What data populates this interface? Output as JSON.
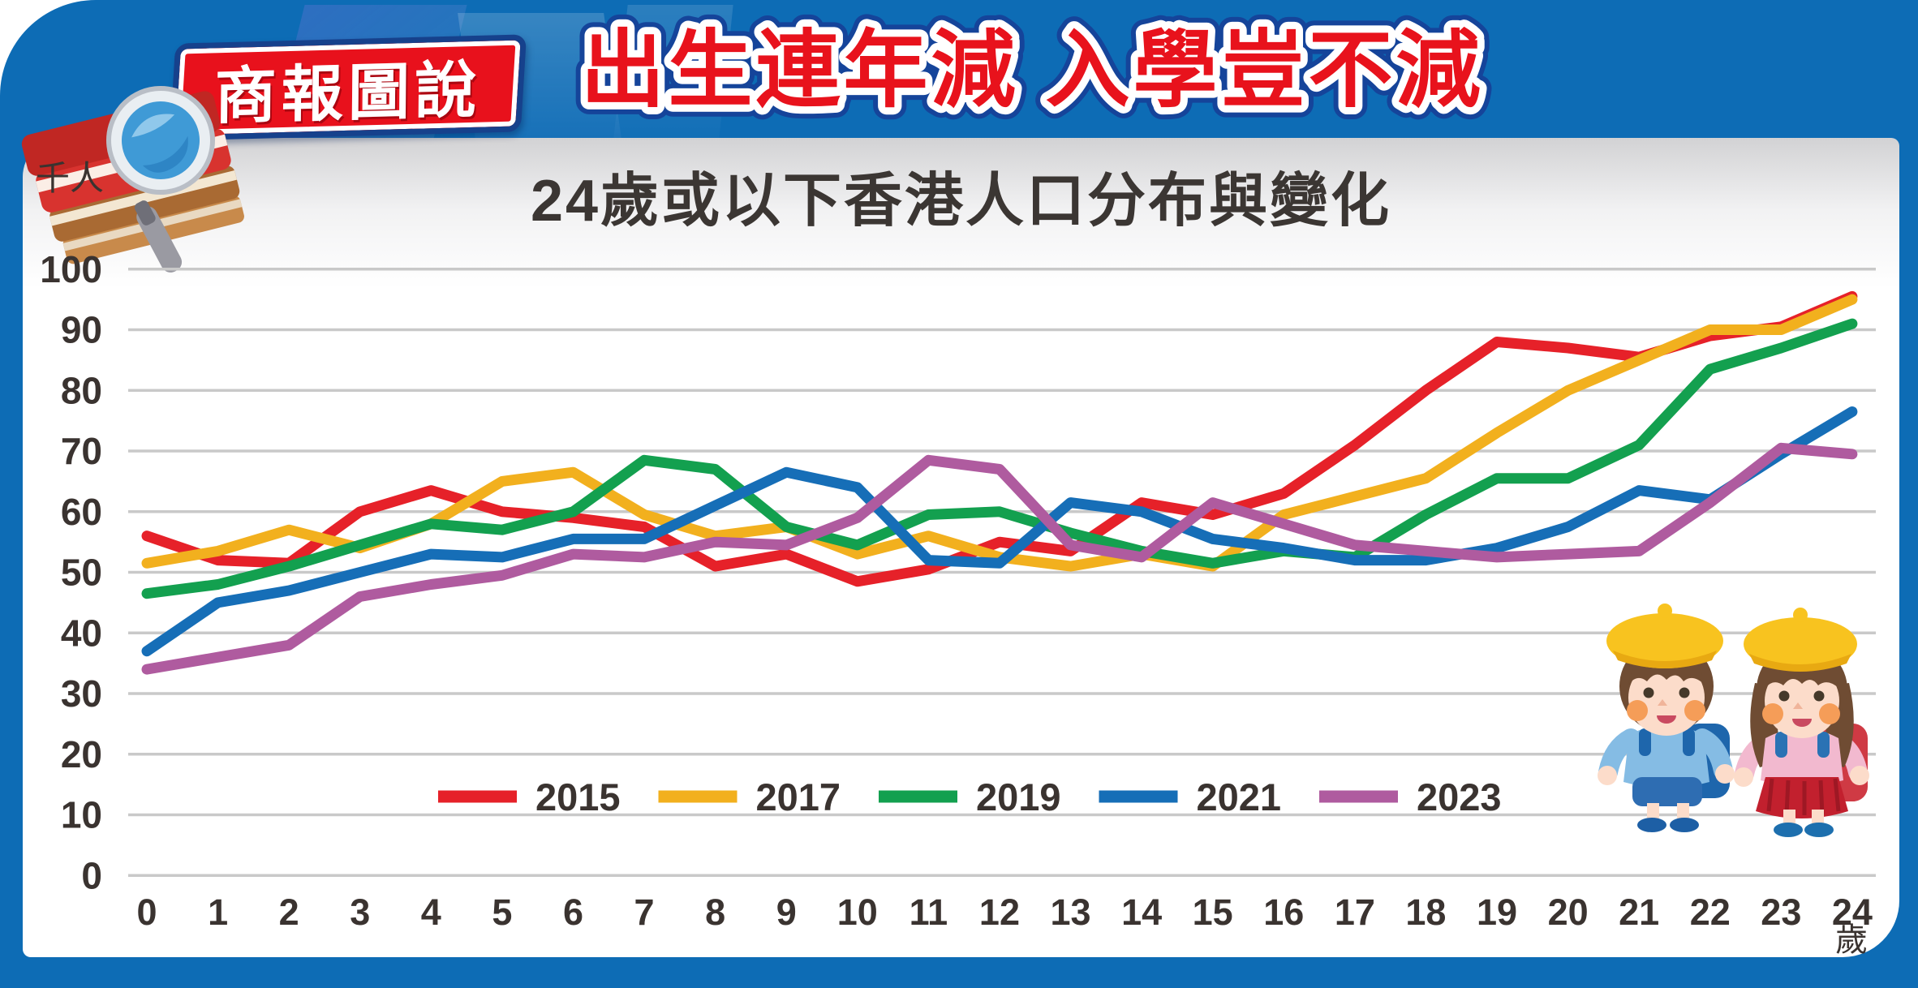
{
  "header": {
    "badge": "商報圖說",
    "title": "出生連年減 入學豈不減"
  },
  "chart_data": {
    "type": "line",
    "title": "24歲或以下香港人口分布與變化",
    "y_unit": "千人",
    "x_unit": "歲",
    "xlabel": "",
    "ylabel": "千人",
    "ylim": [
      0,
      100
    ],
    "y_ticks": [
      0,
      10,
      20,
      30,
      40,
      50,
      60,
      70,
      80,
      90,
      100
    ],
    "x": [
      0,
      1,
      2,
      3,
      4,
      5,
      6,
      7,
      8,
      9,
      10,
      11,
      12,
      13,
      14,
      15,
      16,
      17,
      18,
      19,
      20,
      21,
      22,
      23,
      24
    ],
    "grid": true,
    "legend_position": "bottom-center",
    "series": [
      {
        "name": "2015",
        "color": "#e62129",
        "values": [
          56,
          52,
          51.5,
          60,
          63.5,
          60,
          59,
          57.5,
          51,
          53,
          48.5,
          50.5,
          55,
          53.5,
          61.5,
          59.5,
          63,
          71,
          80,
          88,
          87,
          85.5,
          89,
          90.5,
          95.5
        ]
      },
      {
        "name": "2017",
        "color": "#f2b01e",
        "values": [
          51.5,
          53.5,
          57,
          54,
          58,
          65,
          66.5,
          59.5,
          56,
          57.5,
          53,
          56,
          52.5,
          51,
          53,
          51,
          59.5,
          62.5,
          65.5,
          73,
          80,
          85,
          90,
          90,
          95
        ]
      },
      {
        "name": "2019",
        "color": "#13a04f",
        "values": [
          46.5,
          48,
          51,
          54.5,
          58,
          57,
          60,
          68.5,
          67,
          57.5,
          54.5,
          59.5,
          60,
          56.5,
          53.5,
          51.5,
          53.5,
          52.5,
          59.5,
          65.5,
          65.5,
          71,
          83.5,
          87,
          91
        ]
      },
      {
        "name": "2021",
        "color": "#166eb7",
        "values": [
          37,
          45,
          47,
          50,
          53,
          52.5,
          55.5,
          55.5,
          61,
          66.5,
          64,
          52,
          51.5,
          61.5,
          60,
          55.5,
          54,
          52,
          52,
          54,
          57.5,
          63.5,
          62,
          69.5,
          76.5
        ]
      },
      {
        "name": "2023",
        "color": "#af5b9f",
        "values": [
          34,
          36,
          38,
          46,
          48,
          49.5,
          53,
          52.5,
          55,
          54.5,
          59,
          68.5,
          67,
          54.5,
          52.5,
          61.5,
          58,
          54.5,
          53.5,
          52.5,
          53,
          53.5,
          61.5,
          70.5,
          69.5
        ]
      }
    ]
  },
  "colors": {
    "frame_blue": "#0d6cb5",
    "title_red": "#e8121c",
    "grid": "#c9c9c9",
    "axis_text": "#3a3330"
  },
  "illustration": "two-children-with-yellow-hats"
}
